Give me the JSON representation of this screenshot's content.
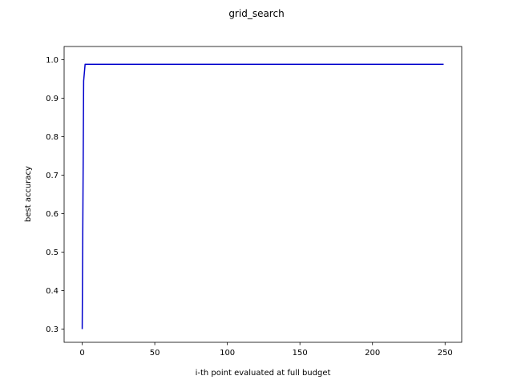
{
  "chart_data": {
    "type": "line",
    "title": "grid_search",
    "xlabel": "i-th point evaluated at full budget",
    "ylabel": "best accuracy",
    "xlim": [
      -12.45,
      261.45
    ],
    "ylim": [
      0.2655,
      1.0345
    ],
    "xticks": [
      0,
      50,
      100,
      150,
      200,
      250
    ],
    "yticks": [
      0.3,
      0.4,
      0.5,
      0.6,
      0.7,
      0.8,
      0.9,
      1.0
    ],
    "xtick_labels": [
      "0",
      "50",
      "100",
      "150",
      "200",
      "250"
    ],
    "ytick_labels": [
      "0.3",
      "0.4",
      "0.5",
      "0.6",
      "0.7",
      "0.8",
      "0.9",
      "1.0"
    ],
    "grid": false,
    "series": [
      {
        "color": "#0000cc",
        "x": [
          0,
          1,
          2,
          3,
          249
        ],
        "y": [
          0.3,
          0.945,
          0.988,
          0.988,
          0.988
        ]
      }
    ]
  }
}
